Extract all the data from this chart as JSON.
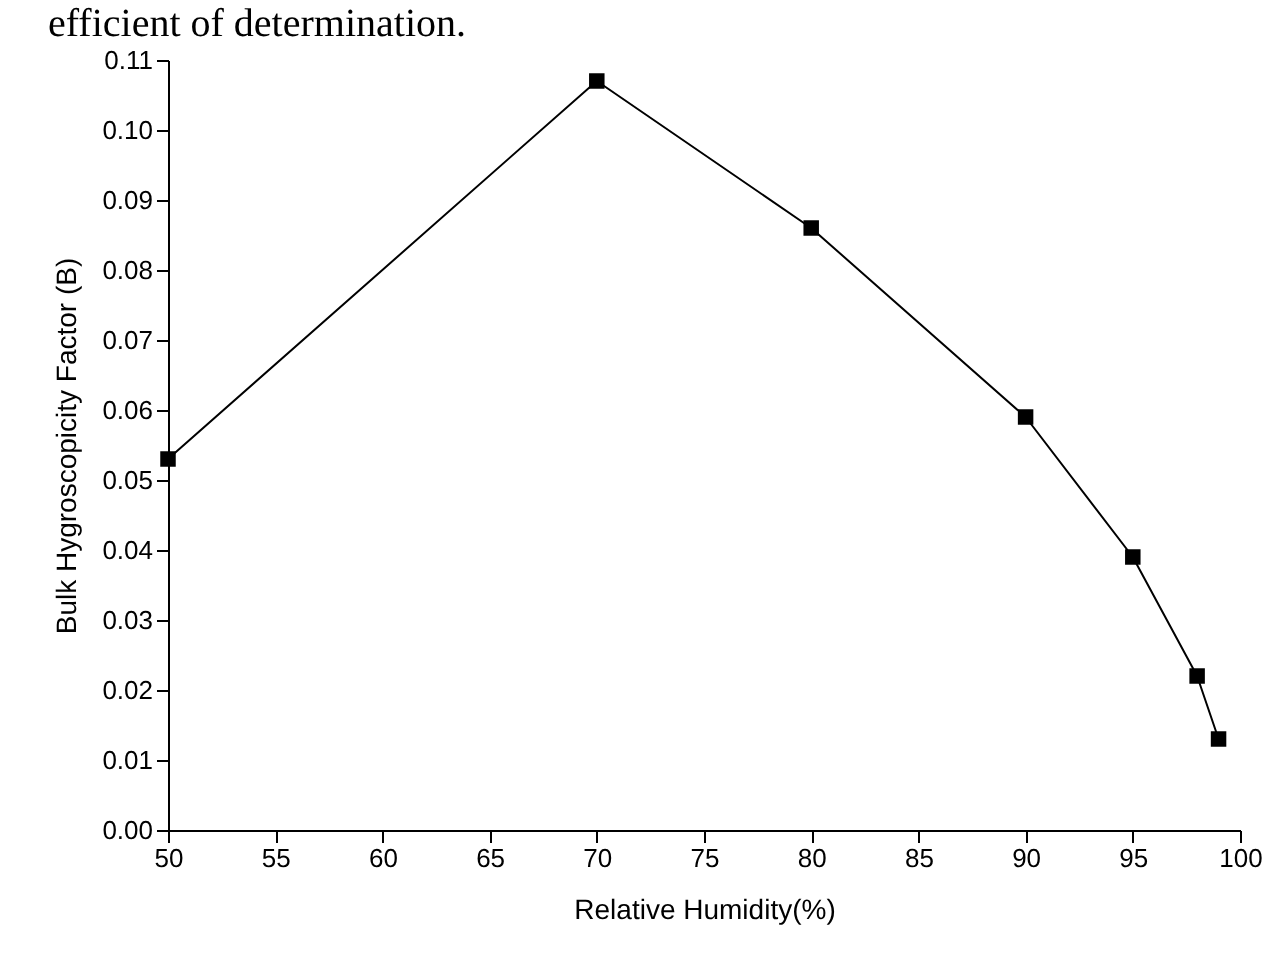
{
  "chart_data": {
    "type": "line",
    "xlabel": "Relative Humidity(%)",
    "ylabel": "Bulk Hygroscopicity Factor (B)",
    "annotations": [
      "efficient of determination."
    ],
    "x": [
      50,
      70,
      80,
      90,
      95,
      98,
      99
    ],
    "series": [
      {
        "color": "#000000",
        "values": [
          0.053,
          0.107,
          0.086,
          0.059,
          0.039,
          0.022,
          0.013
        ]
      }
    ],
    "xlim": [
      50,
      100
    ],
    "xticks": [
      50,
      55,
      60,
      65,
      70,
      75,
      80,
      85,
      90,
      95,
      100
    ],
    "ylim": [
      0,
      0.11
    ],
    "yticks": [
      {
        "value": 0,
        "label": "0.00"
      },
      0.01,
      0.02,
      0.03,
      0.04,
      0.05,
      0.06,
      0.07,
      0.08,
      0.09,
      {
        "value": 0.1,
        "label": "0.10"
      },
      0.11
    ],
    "grid": false,
    "legend": false,
    "marker": "square",
    "line_style": "solid"
  }
}
